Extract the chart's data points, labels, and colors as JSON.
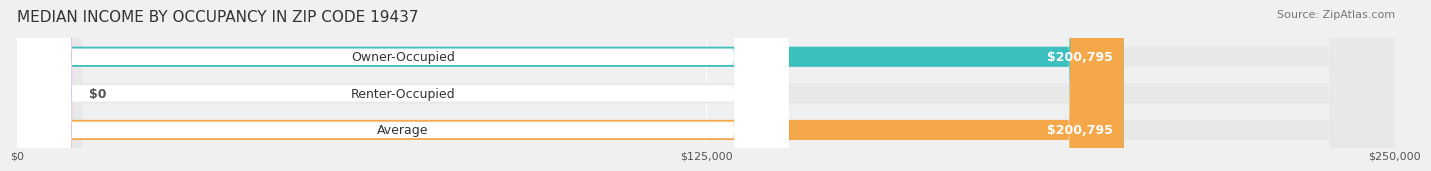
{
  "title": "MEDIAN INCOME BY OCCUPANCY IN ZIP CODE 19437",
  "source": "Source: ZipAtlas.com",
  "categories": [
    "Owner-Occupied",
    "Renter-Occupied",
    "Average"
  ],
  "values": [
    200795,
    0,
    200795
  ],
  "bar_colors": [
    "#3bbfbf",
    "#c9a8d4",
    "#f5a84a"
  ],
  "bar_labels": [
    "$200,795",
    "$0",
    "$200,795"
  ],
  "xlim": [
    0,
    250000
  ],
  "xticks": [
    0,
    125000,
    250000
  ],
  "xtick_labels": [
    "$0",
    "$125,000",
    "$250,000"
  ],
  "background_color": "#f0f0f0",
  "bar_bg_color": "#e8e8e8",
  "bar_height": 0.55,
  "label_fontsize": 9,
  "title_fontsize": 11,
  "source_fontsize": 8
}
